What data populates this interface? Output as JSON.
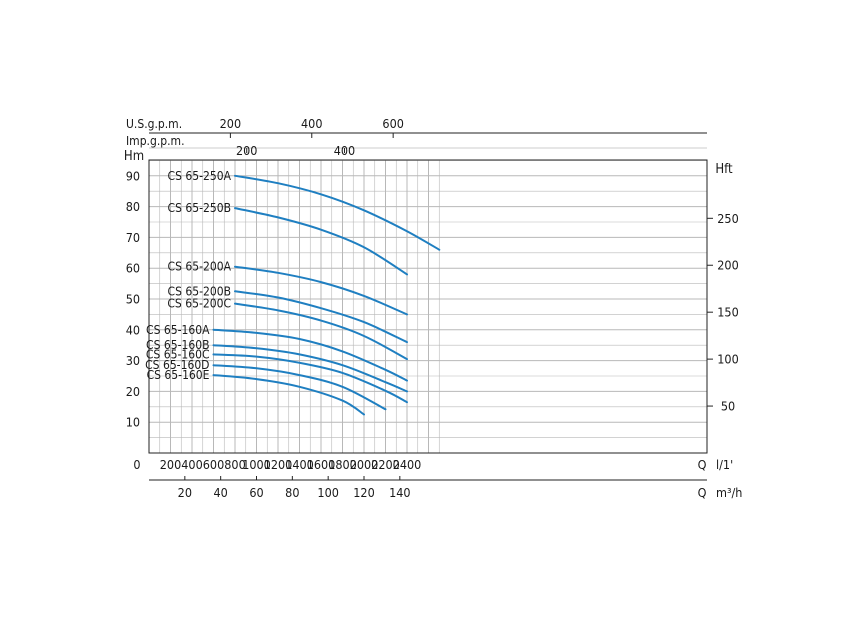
{
  "chart_data": {
    "type": "line",
    "title": "",
    "grid": true,
    "x_axis": {
      "min": 0,
      "max": 2700,
      "tick_values": [
        0,
        200,
        400,
        600,
        800,
        1000,
        1200,
        1400,
        1600,
        1800,
        2000,
        2200,
        2400
      ],
      "tick_labels": [
        "0",
        "200",
        "400",
        "600",
        "800",
        "1000",
        "1200",
        "1400",
        "1600",
        "1800",
        "2000",
        "2200",
        "2400"
      ],
      "unit_q": "Q",
      "unit": "l/1'"
    },
    "x_axis_m3h": {
      "tick_values": [
        20,
        40,
        60,
        80,
        100,
        120,
        140
      ],
      "tick_labels": [
        "20",
        "40",
        "60",
        "80",
        "100",
        "120",
        "140"
      ],
      "unit_q": "Q",
      "unit": "m³/h"
    },
    "x_axis_usgpm": {
      "label": "U.S.g.p.m.",
      "tick_values": [
        200,
        400,
        600
      ],
      "tick_labels": [
        "200",
        "400",
        "600"
      ]
    },
    "x_axis_impgpm": {
      "label": "Imp.g.p.m.",
      "tick_values": [
        200,
        400
      ],
      "tick_labels": [
        "200",
        "400"
      ]
    },
    "y_axis": {
      "label": "Hm",
      "min": 0,
      "max": 95,
      "tick_values": [
        10,
        20,
        30,
        40,
        50,
        60,
        70,
        80,
        90
      ],
      "tick_labels": [
        "10",
        "20",
        "30",
        "40",
        "50",
        "60",
        "70",
        "80",
        "90"
      ]
    },
    "y_axis_right": {
      "label": "Hft",
      "tick_values": [
        50,
        100,
        150,
        200,
        250
      ],
      "tick_labels": [
        "50",
        "100",
        "150",
        "200",
        "250"
      ]
    },
    "series": [
      {
        "name": "CS 65-250A",
        "x": [
          800,
          1200,
          1600,
          2000,
          2400,
          2700
        ],
        "y": [
          90,
          87.6,
          84,
          78.8,
          72,
          66
        ]
      },
      {
        "name": "CS 65-250B",
        "x": [
          800,
          1200,
          1600,
          2000,
          2400
        ],
        "y": [
          79.5,
          76.5,
          72.5,
          66.8,
          58
        ]
      },
      {
        "name": "CS 65-200A",
        "x": [
          800,
          1200,
          1600,
          2000,
          2400
        ],
        "y": [
          60.5,
          58.5,
          55.5,
          51,
          45
        ]
      },
      {
        "name": "CS 65-200B",
        "x": [
          800,
          1200,
          1600,
          2000,
          2400
        ],
        "y": [
          52.5,
          50.5,
          47,
          42.5,
          36
        ]
      },
      {
        "name": "CS 65-200C",
        "x": [
          800,
          1200,
          1600,
          2000,
          2400
        ],
        "y": [
          48.5,
          46.3,
          43,
          38,
          30.5
        ]
      },
      {
        "name": "CS 65-160A",
        "x": [
          600,
          1000,
          1400,
          1800,
          2200,
          2400
        ],
        "y": [
          40,
          39,
          37,
          33,
          27,
          23.5
        ]
      },
      {
        "name": "CS 65-160B",
        "x": [
          600,
          1000,
          1400,
          1800,
          2200,
          2400
        ],
        "y": [
          35,
          34,
          32,
          28.5,
          23,
          20
        ]
      },
      {
        "name": "CS 65-160C",
        "x": [
          600,
          1000,
          1400,
          1800,
          2200,
          2400
        ],
        "y": [
          32,
          31.3,
          29.3,
          26,
          20.2,
          16.5
        ]
      },
      {
        "name": "CS 65-160D",
        "x": [
          600,
          1000,
          1400,
          1800,
          2200
        ],
        "y": [
          28.5,
          27.5,
          25.3,
          21.5,
          14.2
        ]
      },
      {
        "name": "CS 65-160E",
        "x": [
          600,
          1000,
          1400,
          1800,
          2000
        ],
        "y": [
          25.3,
          24,
          21.5,
          17,
          12.5
        ]
      }
    ],
    "colors": {
      "curve": "#1f7fc1",
      "grid": "#b8b8b8",
      "axis": "#222222"
    }
  }
}
